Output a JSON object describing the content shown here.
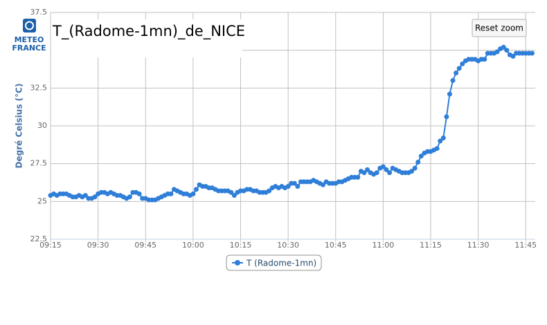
{
  "logo_text": [
    "METEO",
    "FRANCE"
  ],
  "button": "Reset zoom",
  "chart_data": {
    "type": "line",
    "title": "T_(Radome-1mn)_de_NICE",
    "y_label": "Degré Celsius (°C)",
    "xlim": [
      "09:15",
      "11:48"
    ],
    "xticks": [
      "09:15",
      "09:30",
      "09:45",
      "10:00",
      "10:15",
      "10:30",
      "10:45",
      "11:00",
      "11:15",
      "11:30",
      "11:45"
    ],
    "ylim": [
      22.5,
      37.5
    ],
    "yticks": [
      22.5,
      25,
      27.5,
      30,
      32.5,
      35,
      37.5
    ],
    "grid": true,
    "legend": "bottom",
    "x": [
      "09:15",
      "09:16",
      "09:17",
      "09:18",
      "09:19",
      "09:20",
      "09:21",
      "09:22",
      "09:23",
      "09:24",
      "09:25",
      "09:26",
      "09:27",
      "09:28",
      "09:29",
      "09:30",
      "09:31",
      "09:32",
      "09:33",
      "09:34",
      "09:35",
      "09:36",
      "09:37",
      "09:38",
      "09:39",
      "09:40",
      "09:41",
      "09:42",
      "09:43",
      "09:44",
      "09:45",
      "09:46",
      "09:47",
      "09:48",
      "09:49",
      "09:50",
      "09:51",
      "09:52",
      "09:53",
      "09:54",
      "09:55",
      "09:56",
      "09:57",
      "09:58",
      "09:59",
      "10:00",
      "10:01",
      "10:02",
      "10:03",
      "10:04",
      "10:05",
      "10:06",
      "10:07",
      "10:08",
      "10:09",
      "10:10",
      "10:11",
      "10:12",
      "10:13",
      "10:14",
      "10:15",
      "10:16",
      "10:17",
      "10:18",
      "10:19",
      "10:20",
      "10:21",
      "10:22",
      "10:23",
      "10:24",
      "10:25",
      "10:26",
      "10:27",
      "10:28",
      "10:29",
      "10:30",
      "10:31",
      "10:32",
      "10:33",
      "10:34",
      "10:35",
      "10:36",
      "10:37",
      "10:38",
      "10:39",
      "10:40",
      "10:41",
      "10:42",
      "10:43",
      "10:44",
      "10:45",
      "10:46",
      "10:47",
      "10:48",
      "10:49",
      "10:50",
      "10:51",
      "10:52",
      "10:53",
      "10:54",
      "10:55",
      "10:56",
      "10:57",
      "10:58",
      "10:59",
      "11:00",
      "11:01",
      "11:02",
      "11:03",
      "11:04",
      "11:05",
      "11:06",
      "11:07",
      "11:08",
      "11:09",
      "11:10",
      "11:11",
      "11:12",
      "11:13",
      "11:14",
      "11:15",
      "11:16",
      "11:17",
      "11:18",
      "11:19",
      "11:20",
      "11:21",
      "11:22",
      "11:23",
      "11:24",
      "11:25",
      "11:26",
      "11:27",
      "11:28",
      "11:29",
      "11:30",
      "11:31",
      "11:32",
      "11:33",
      "11:34",
      "11:35",
      "11:36",
      "11:37",
      "11:38",
      "11:39",
      "11:40",
      "11:41",
      "11:42",
      "11:43",
      "11:44",
      "11:45",
      "11:46",
      "11:47"
    ],
    "series": [
      {
        "name": "T (Radome-1mn)",
        "color": "#2f7ed8",
        "values": [
          25.4,
          25.5,
          25.4,
          25.5,
          25.5,
          25.5,
          25.4,
          25.3,
          25.3,
          25.4,
          25.3,
          25.4,
          25.2,
          25.2,
          25.3,
          25.5,
          25.6,
          25.6,
          25.5,
          25.6,
          25.5,
          25.4,
          25.4,
          25.3,
          25.2,
          25.3,
          25.6,
          25.6,
          25.5,
          25.2,
          25.2,
          25.1,
          25.1,
          25.1,
          25.2,
          25.3,
          25.4,
          25.5,
          25.5,
          25.8,
          25.7,
          25.6,
          25.5,
          25.5,
          25.4,
          25.5,
          25.8,
          26.1,
          26.0,
          26.0,
          25.9,
          25.9,
          25.8,
          25.7,
          25.7,
          25.7,
          25.7,
          25.6,
          25.4,
          25.6,
          25.7,
          25.7,
          25.8,
          25.8,
          25.7,
          25.7,
          25.6,
          25.6,
          25.6,
          25.7,
          25.9,
          26.0,
          25.9,
          26.0,
          25.9,
          26.0,
          26.2,
          26.2,
          26.0,
          26.3,
          26.3,
          26.3,
          26.3,
          26.4,
          26.3,
          26.2,
          26.1,
          26.3,
          26.2,
          26.2,
          26.2,
          26.3,
          26.3,
          26.4,
          26.5,
          26.6,
          26.6,
          26.6,
          27.0,
          26.9,
          27.1,
          26.9,
          26.8,
          26.9,
          27.2,
          27.3,
          27.1,
          26.9,
          27.2,
          27.1,
          27.0,
          26.9,
          26.9,
          26.9,
          27.0,
          27.2,
          27.6,
          28.0,
          28.2,
          28.3,
          28.3,
          28.4,
          28.5,
          29.0,
          29.2,
          30.6,
          32.1,
          33.0,
          33.5,
          33.8,
          34.1,
          34.3,
          34.4,
          34.4,
          34.4,
          34.3,
          34.4,
          34.4,
          34.8,
          34.8,
          34.8,
          34.9,
          35.1,
          35.2,
          35.0,
          34.7,
          34.6,
          34.8,
          34.8,
          34.8,
          34.8,
          34.8,
          34.8
        ]
      }
    ]
  }
}
